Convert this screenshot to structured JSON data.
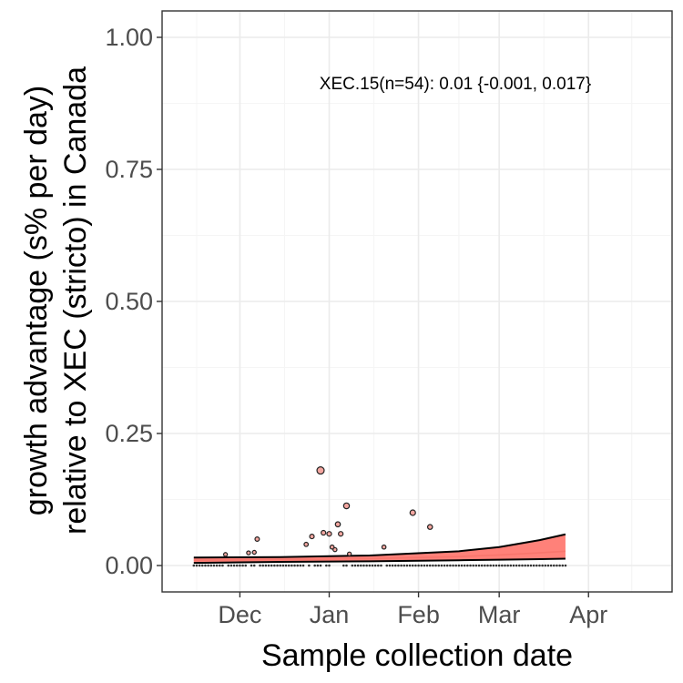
{
  "chart_data": {
    "type": "scatter",
    "title": "",
    "xlabel": "Sample collection date",
    "ylabel_lines": [
      "growth advantage (s% per day)",
      "relative to XEC (stricto) in Canada"
    ],
    "xlim": [
      "2024-11-04",
      "2025-04-30"
    ],
    "ylim": [
      -0.05,
      1.05
    ],
    "x_ticks": [
      {
        "date": "2024-12-01",
        "label": "Dec"
      },
      {
        "date": "2025-01-01",
        "label": "Jan"
      },
      {
        "date": "2025-02-01",
        "label": "Feb"
      },
      {
        "date": "2025-03-01",
        "label": "Mar"
      },
      {
        "date": "2025-04-01",
        "label": "Apr"
      }
    ],
    "y_ticks": [
      {
        "value": 0.0,
        "label": "0.00"
      },
      {
        "value": 0.25,
        "label": "0.25"
      },
      {
        "value": 0.5,
        "label": "0.50"
      },
      {
        "value": 0.75,
        "label": "0.75"
      },
      {
        "value": 1.0,
        "label": "1.00"
      }
    ],
    "grid": true,
    "annotation": "XEC.15(n=54): 0.01 {-0.001, 0.017}",
    "colors": {
      "ribbon": "#ff7a72",
      "fit_line": "#f8766d",
      "bound_line": "#000000",
      "point_fill": "#f4a6a0",
      "grid_major": "#ebebeb",
      "grid_minor": "#f5f5f5"
    },
    "fit": {
      "x": [
        "2024-11-15",
        "2024-12-15",
        "2025-01-15",
        "2025-02-15",
        "2025-03-01",
        "2025-03-15",
        "2025-03-24"
      ],
      "mid": [
        0.01,
        0.011,
        0.013,
        0.017,
        0.02,
        0.024,
        0.027
      ],
      "lower": [
        0.005,
        0.007,
        0.008,
        0.01,
        0.011,
        0.012,
        0.013
      ],
      "upper": [
        0.015,
        0.016,
        0.019,
        0.027,
        0.035,
        0.048,
        0.059
      ]
    },
    "points": [
      {
        "x": "2024-11-26",
        "y": 0.021
      },
      {
        "x": "2024-12-04",
        "y": 0.024
      },
      {
        "x": "2024-12-06",
        "y": 0.025
      },
      {
        "x": "2024-12-07",
        "y": 0.05
      },
      {
        "x": "2024-12-24",
        "y": 0.04
      },
      {
        "x": "2024-12-26",
        "y": 0.055
      },
      {
        "x": "2024-12-29",
        "y": 0.18
      },
      {
        "x": "2024-12-30",
        "y": 0.062
      },
      {
        "x": "2025-01-01",
        "y": 0.06
      },
      {
        "x": "2025-01-02",
        "y": 0.035
      },
      {
        "x": "2025-01-03",
        "y": 0.03
      },
      {
        "x": "2025-01-04",
        "y": 0.078
      },
      {
        "x": "2025-01-05",
        "y": 0.06
      },
      {
        "x": "2025-01-07",
        "y": 0.113
      },
      {
        "x": "2025-01-08",
        "y": 0.022
      },
      {
        "x": "2025-01-20",
        "y": 0.035
      },
      {
        "x": "2025-01-30",
        "y": 0.1
      },
      {
        "x": "2025-02-05",
        "y": 0.073
      }
    ],
    "zero_points": {
      "start": "2024-11-15",
      "end": "2025-03-24",
      "value": 0,
      "gaps": [
        "2024-11-26",
        "2024-12-04",
        "2024-12-07",
        "2024-12-24",
        "2024-12-26",
        "2024-12-30",
        "2025-01-02",
        "2025-01-03",
        "2025-01-04",
        "2025-01-05",
        "2025-01-08",
        "2025-01-20"
      ]
    }
  }
}
